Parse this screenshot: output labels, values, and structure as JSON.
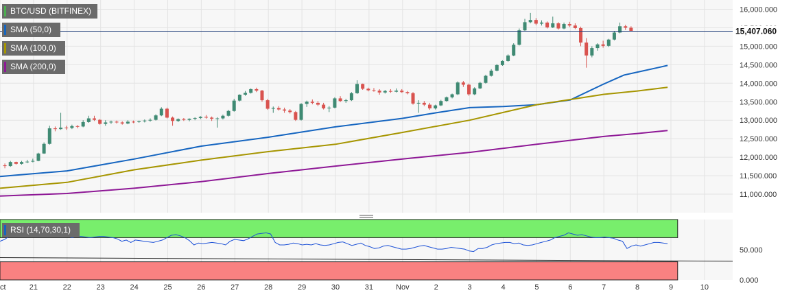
{
  "chart_data": [
    {
      "type": "candlestick",
      "title": "BTC/USD (BITFINEX)",
      "legend": [
        "BTC/USD (BITFINEX)",
        "SMA (50,0)",
        "SMA (100,0)",
        "SMA (200,0)"
      ],
      "last_price": "15,407.060",
      "ylim": [
        10500,
        16250
      ],
      "y_ticks": [
        "16,000.000",
        "15,500.000",
        "15,000.000",
        "14,500.000",
        "14,000.000",
        "13,500.000",
        "13,000.000",
        "12,500.000",
        "12,000.000",
        "11,500.000",
        "11,000.000"
      ],
      "y_tick_values": [
        16000,
        15500,
        15000,
        14500,
        14000,
        13500,
        13000,
        12500,
        12000,
        11500,
        11000
      ],
      "x_ticks": [
        "Oct",
        "21",
        "22",
        "23",
        "24",
        "25",
        "26",
        "27",
        "28",
        "29",
        "30",
        "31",
        "Nov",
        "2",
        "3",
        "4",
        "5",
        "6",
        "7",
        "8",
        "9",
        "10"
      ],
      "candles_per_day": 6,
      "candles": [
        [
          11780,
          11830,
          11700,
          11760
        ],
        [
          11760,
          11900,
          11740,
          11870
        ],
        [
          11870,
          11880,
          11800,
          11820
        ],
        [
          11820,
          11900,
          11800,
          11870
        ],
        [
          11870,
          11930,
          11840,
          11880
        ],
        [
          11880,
          11960,
          11860,
          11900
        ],
        [
          11900,
          12120,
          11890,
          12100
        ],
        [
          12100,
          12400,
          12090,
          12360
        ],
        [
          12360,
          12850,
          12340,
          12780
        ],
        [
          12780,
          12830,
          12700,
          12760
        ],
        [
          12760,
          13200,
          12740,
          12800
        ],
        [
          12800,
          12850,
          12740,
          12790
        ],
        [
          12790,
          12880,
          12760,
          12840
        ],
        [
          12840,
          12870,
          12780,
          12830
        ],
        [
          12830,
          13000,
          12810,
          12950
        ],
        [
          12950,
          13120,
          12930,
          13050
        ],
        [
          13050,
          13120,
          12980,
          13010
        ],
        [
          13010,
          13030,
          12880,
          12900
        ],
        [
          12900,
          13000,
          12850,
          12940
        ],
        [
          12940,
          12990,
          12900,
          12960
        ],
        [
          12960,
          12990,
          12910,
          12940
        ],
        [
          12940,
          12970,
          12880,
          12910
        ],
        [
          12910,
          13000,
          12890,
          12960
        ],
        [
          12960,
          12990,
          12920,
          12950
        ],
        [
          12950,
          12990,
          12930,
          12970
        ],
        [
          12970,
          13020,
          12940,
          12990
        ],
        [
          12990,
          13050,
          12960,
          13010
        ],
        [
          13010,
          13160,
          12990,
          13130
        ],
        [
          13130,
          13350,
          13110,
          13310
        ],
        [
          13310,
          13340,
          13050,
          13070
        ],
        [
          13070,
          13100,
          12850,
          12980
        ],
        [
          12980,
          13050,
          12950,
          13030
        ],
        [
          13030,
          13060,
          12980,
          13010
        ],
        [
          13010,
          13050,
          12970,
          13040
        ],
        [
          13040,
          13080,
          13000,
          13060
        ],
        [
          13060,
          13110,
          13030,
          13090
        ],
        [
          13090,
          13140,
          13040,
          13070
        ],
        [
          13070,
          13100,
          12980,
          13040
        ],
        [
          13040,
          13080,
          12800,
          13050
        ],
        [
          13050,
          13150,
          13020,
          13120
        ],
        [
          13120,
          13280,
          13100,
          13250
        ],
        [
          13250,
          13580,
          13230,
          13530
        ],
        [
          13530,
          13700,
          13510,
          13690
        ],
        [
          13690,
          13790,
          13660,
          13740
        ],
        [
          13740,
          13860,
          13720,
          13840
        ],
        [
          13840,
          13880,
          13760,
          13800
        ],
        [
          13800,
          13820,
          13500,
          13540
        ],
        [
          13540,
          13580,
          13280,
          13310
        ],
        [
          13310,
          13370,
          13200,
          13330
        ],
        [
          13330,
          13380,
          13260,
          13290
        ],
        [
          13290,
          13340,
          13200,
          13260
        ],
        [
          13260,
          13300,
          13180,
          13220
        ],
        [
          13220,
          13250,
          12980,
          13010
        ],
        [
          13010,
          13460,
          12990,
          13440
        ],
        [
          13440,
          13530,
          13360,
          13500
        ],
        [
          13500,
          13560,
          13430,
          13470
        ],
        [
          13470,
          13520,
          13380,
          13420
        ],
        [
          13420,
          13470,
          13290,
          13320
        ],
        [
          13320,
          13380,
          13220,
          13340
        ],
        [
          13340,
          13620,
          13320,
          13590
        ],
        [
          13590,
          13650,
          13490,
          13520
        ],
        [
          13520,
          13580,
          13470,
          13540
        ],
        [
          13540,
          13760,
          13520,
          13730
        ],
        [
          13730,
          14080,
          13710,
          13980
        ],
        [
          13980,
          13990,
          13820,
          13850
        ],
        [
          13850,
          13880,
          13780,
          13810
        ],
        [
          13810,
          13870,
          13770,
          13800
        ],
        [
          13800,
          13840,
          13690,
          13750
        ],
        [
          13750,
          13820,
          13720,
          13790
        ],
        [
          13790,
          13840,
          13740,
          13770
        ],
        [
          13770,
          13860,
          13750,
          13800
        ],
        [
          13800,
          13840,
          13740,
          13760
        ],
        [
          13760,
          13790,
          13700,
          13730
        ],
        [
          13730,
          13760,
          13420,
          13450
        ],
        [
          13450,
          13540,
          13200,
          13470
        ],
        [
          13470,
          13520,
          13380,
          13420
        ],
        [
          13420,
          13470,
          13280,
          13320
        ],
        [
          13320,
          13420,
          13290,
          13400
        ],
        [
          13400,
          13550,
          13380,
          13520
        ],
        [
          13520,
          13640,
          13500,
          13620
        ],
        [
          13620,
          13720,
          13590,
          13700
        ],
        [
          13700,
          14050,
          13680,
          14020
        ],
        [
          14020,
          14060,
          13900,
          13960
        ],
        [
          13960,
          13990,
          13660,
          13700
        ],
        [
          13700,
          13890,
          13680,
          13860
        ],
        [
          13860,
          14040,
          13840,
          14010
        ],
        [
          14010,
          14230,
          13990,
          14200
        ],
        [
          14200,
          14380,
          14180,
          14340
        ],
        [
          14340,
          14520,
          14320,
          14490
        ],
        [
          14490,
          14620,
          14470,
          14600
        ],
        [
          14600,
          14780,
          14580,
          14750
        ],
        [
          14750,
          15080,
          14730,
          15040
        ],
        [
          15040,
          15480,
          15020,
          15430
        ],
        [
          15430,
          15740,
          15410,
          15650
        ],
        [
          15650,
          15900,
          15620,
          15710
        ],
        [
          15710,
          15760,
          15570,
          15610
        ],
        [
          15610,
          15700,
          15560,
          15640
        ],
        [
          15640,
          15670,
          15480,
          15510
        ],
        [
          15510,
          15800,
          15490,
          15620
        ],
        [
          15620,
          15650,
          15450,
          15480
        ],
        [
          15480,
          15640,
          15460,
          15600
        ],
        [
          15600,
          15660,
          15520,
          15560
        ],
        [
          15560,
          15620,
          15460,
          15490
        ],
        [
          15490,
          15530,
          15000,
          15100
        ],
        [
          15100,
          15220,
          14420,
          14750
        ],
        [
          14750,
          15000,
          14700,
          14950
        ],
        [
          14950,
          15080,
          14880,
          15050
        ],
        [
          15050,
          15150,
          14960,
          15010
        ],
        [
          15010,
          15200,
          14980,
          15180
        ],
        [
          15180,
          15400,
          15160,
          15370
        ],
        [
          15370,
          15640,
          15350,
          15540
        ],
        [
          15540,
          15580,
          15440,
          15500
        ],
        [
          15500,
          15540,
          15400,
          15407
        ]
      ],
      "series": [
        {
          "name": "SMA (50,0)",
          "color": "#1565c0",
          "x_day": [
            0,
            2,
            4,
            6,
            8,
            10,
            12,
            13,
            14,
            15,
            16,
            17,
            18,
            18.6,
            19,
            19.6,
            19.9
          ],
          "values": [
            11480,
            11630,
            11950,
            12300,
            12540,
            12820,
            13050,
            13200,
            13340,
            13370,
            13420,
            13550,
            13980,
            14220,
            14300,
            14420,
            14480
          ]
        },
        {
          "name": "SMA (100,0)",
          "color": "#a69500",
          "x_day": [
            0,
            2,
            4,
            6,
            8,
            10,
            12,
            14,
            16,
            18,
            19,
            19.9
          ],
          "values": [
            11160,
            11320,
            11660,
            11920,
            12150,
            12350,
            12670,
            13000,
            13420,
            13700,
            13790,
            13890
          ]
        },
        {
          "name": "SMA (200,0)",
          "color": "#8e1896",
          "x_day": [
            0,
            2,
            4,
            6,
            8,
            10,
            12,
            14,
            16,
            18,
            19,
            19.9
          ],
          "values": [
            10950,
            11020,
            11160,
            11340,
            11560,
            11760,
            11950,
            12130,
            12350,
            12560,
            12640,
            12720
          ]
        }
      ]
    },
    {
      "type": "line",
      "title": "RSI (14,70,30,1)",
      "ylim": [
        0,
        100
      ],
      "y_ticks": [
        "50.000",
        "0.000"
      ],
      "y_tick_values": [
        50,
        0
      ],
      "overbought": 70,
      "oversold": 30,
      "series": [
        {
          "name": "RSI (14,70,30,1)",
          "values": [
            64,
            67,
            72,
            75,
            78,
            76,
            76,
            78,
            79,
            81,
            80,
            78,
            78,
            72,
            74,
            72,
            70,
            72,
            72,
            71,
            70,
            71,
            72,
            72,
            71,
            70,
            68,
            64,
            66,
            62,
            66,
            65,
            64,
            63,
            62,
            64,
            66,
            70,
            74,
            75,
            73,
            70,
            65,
            58,
            61,
            60,
            61,
            62,
            61,
            60,
            58,
            64,
            67,
            66,
            65,
            68,
            72,
            76,
            77,
            78,
            76,
            62,
            58,
            58,
            59,
            61,
            60,
            58,
            59,
            58,
            60,
            58,
            57,
            58,
            60,
            62,
            63,
            60,
            57,
            59,
            61,
            57,
            55,
            52,
            53,
            56,
            57,
            55,
            53,
            51,
            51,
            52,
            54,
            56,
            57,
            55,
            53,
            51,
            51,
            52,
            54,
            53,
            52,
            51,
            48,
            47,
            52,
            52,
            54,
            58,
            60,
            61,
            62,
            62,
            60,
            61,
            58,
            57,
            58,
            60,
            62,
            64,
            66,
            70,
            72,
            74,
            78,
            76,
            74,
            75,
            73,
            71,
            70,
            70,
            71,
            70,
            69,
            66,
            64,
            52,
            56,
            58,
            56,
            58,
            60,
            62,
            62,
            61,
            60
          ]
        }
      ],
      "trendline": {
        "start": 37,
        "end": 31
      }
    }
  ]
}
